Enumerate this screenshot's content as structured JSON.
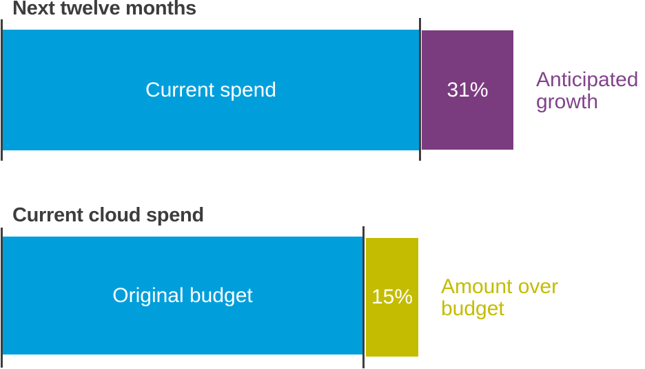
{
  "colors": {
    "blue": "#009FDB",
    "purple": "#7B3C7F",
    "purple-text": "#82428C",
    "yellow": "#C4BC00",
    "yellow-text": "#C4BC00",
    "title": "#3D3D3D",
    "tick": "#3D3D3D",
    "bar-label": "#FFFFFF",
    "bg": "#FFFFFF"
  },
  "charts": [
    {
      "title": "Next twelve months",
      "base_label": "Current spend",
      "segment_value": "31%",
      "annotation": "Anticipated\ngrowth"
    },
    {
      "title": "Current cloud spend",
      "base_label": "Original budget",
      "segment_value": "15%",
      "annotation": "Amount over\nbudget"
    }
  ],
  "chart_data": [
    {
      "type": "bar",
      "orientation": "horizontal",
      "stacked": true,
      "title": "Next twelve months",
      "series": [
        {
          "name": "Current spend",
          "color": "#009FDB",
          "role": "base"
        },
        {
          "name": "Anticipated growth",
          "color": "#7B3C7F",
          "label": "31%",
          "value_pct": 31
        }
      ],
      "annotation": "Anticipated growth",
      "legend_position": "right-of-bar",
      "grid": false,
      "axis_ticks": "dark vertical rules at bar start and at base/segment boundary"
    },
    {
      "type": "bar",
      "orientation": "horizontal",
      "stacked": true,
      "title": "Current cloud spend",
      "series": [
        {
          "name": "Original budget",
          "color": "#009FDB",
          "role": "base"
        },
        {
          "name": "Amount over budget",
          "color": "#C4BC00",
          "label": "15%",
          "value_pct": 15
        }
      ],
      "annotation": "Amount over budget",
      "legend_position": "right-of-bar",
      "grid": false,
      "axis_ticks": "dark vertical rules at bar start and at base/segment boundary"
    }
  ]
}
